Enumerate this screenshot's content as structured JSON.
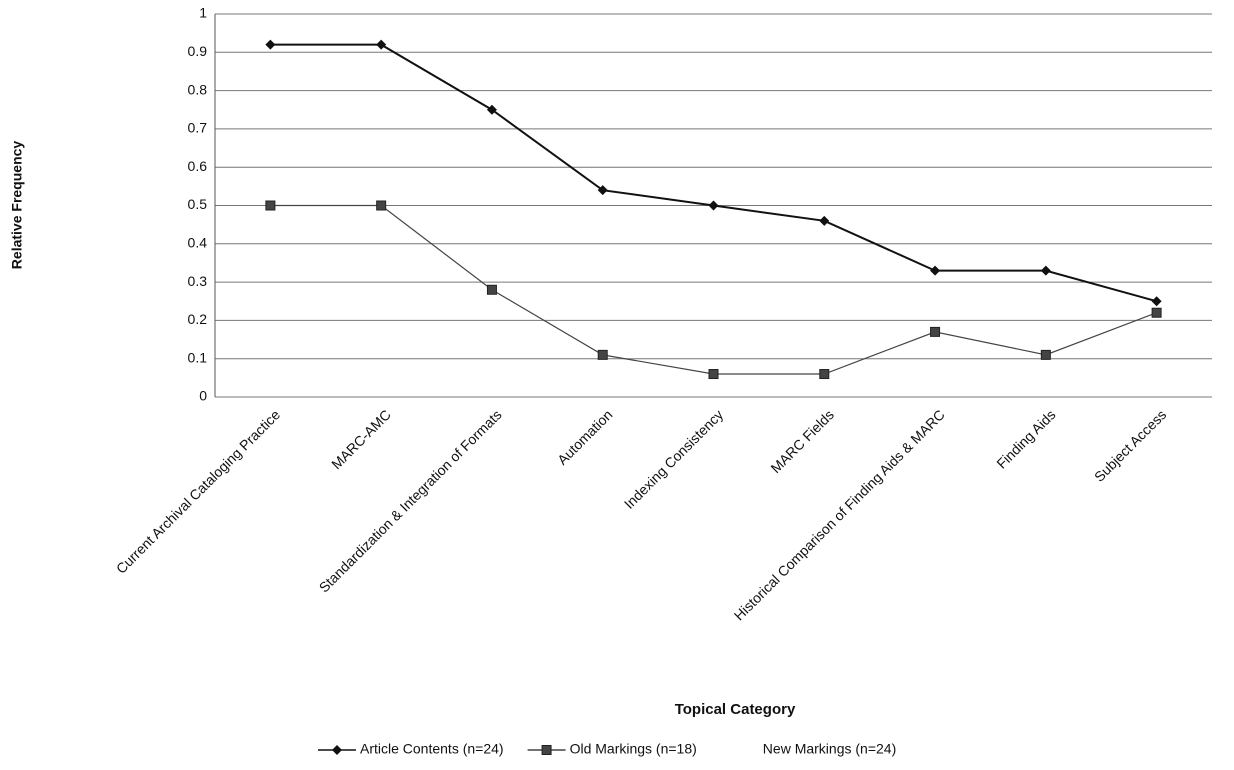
{
  "chart_data": {
    "type": "line",
    "x_label": "Topical Category",
    "y_label": "Relative Frequency",
    "categories": [
      "Current Archival Cataloging Practice",
      "MARC-AMC",
      "Standardization & Integration of Formats",
      "Automation",
      "Indexing Consistency",
      "MARC Fields",
      "Historical Comparison of Finding Aids & MARC",
      "Finding Aids",
      "Subject Access"
    ],
    "series": [
      {
        "name": "Article Contents (n=24)",
        "color": "#111111",
        "marker": "diamond",
        "values": [
          0.92,
          0.92,
          0.75,
          0.54,
          0.5,
          0.46,
          0.33,
          0.33,
          0.25
        ]
      },
      {
        "name": "Old Markings (n=18)",
        "color": "#444444",
        "marker": "square",
        "values": [
          0.5,
          0.5,
          0.28,
          0.11,
          0.06,
          0.06,
          0.17,
          0.11,
          0.22
        ]
      },
      {
        "name": "New Markings (n=24)",
        "color": "#ffffff",
        "marker": "none",
        "values": [
          null,
          null,
          null,
          null,
          null,
          null,
          null,
          null,
          null
        ]
      }
    ],
    "ylim": [
      0,
      1
    ],
    "yticks": [
      0,
      0.1,
      0.2,
      0.3,
      0.4,
      0.5,
      0.6,
      0.7,
      0.8,
      0.9,
      1
    ],
    "grid": true,
    "legend": "bottom"
  }
}
